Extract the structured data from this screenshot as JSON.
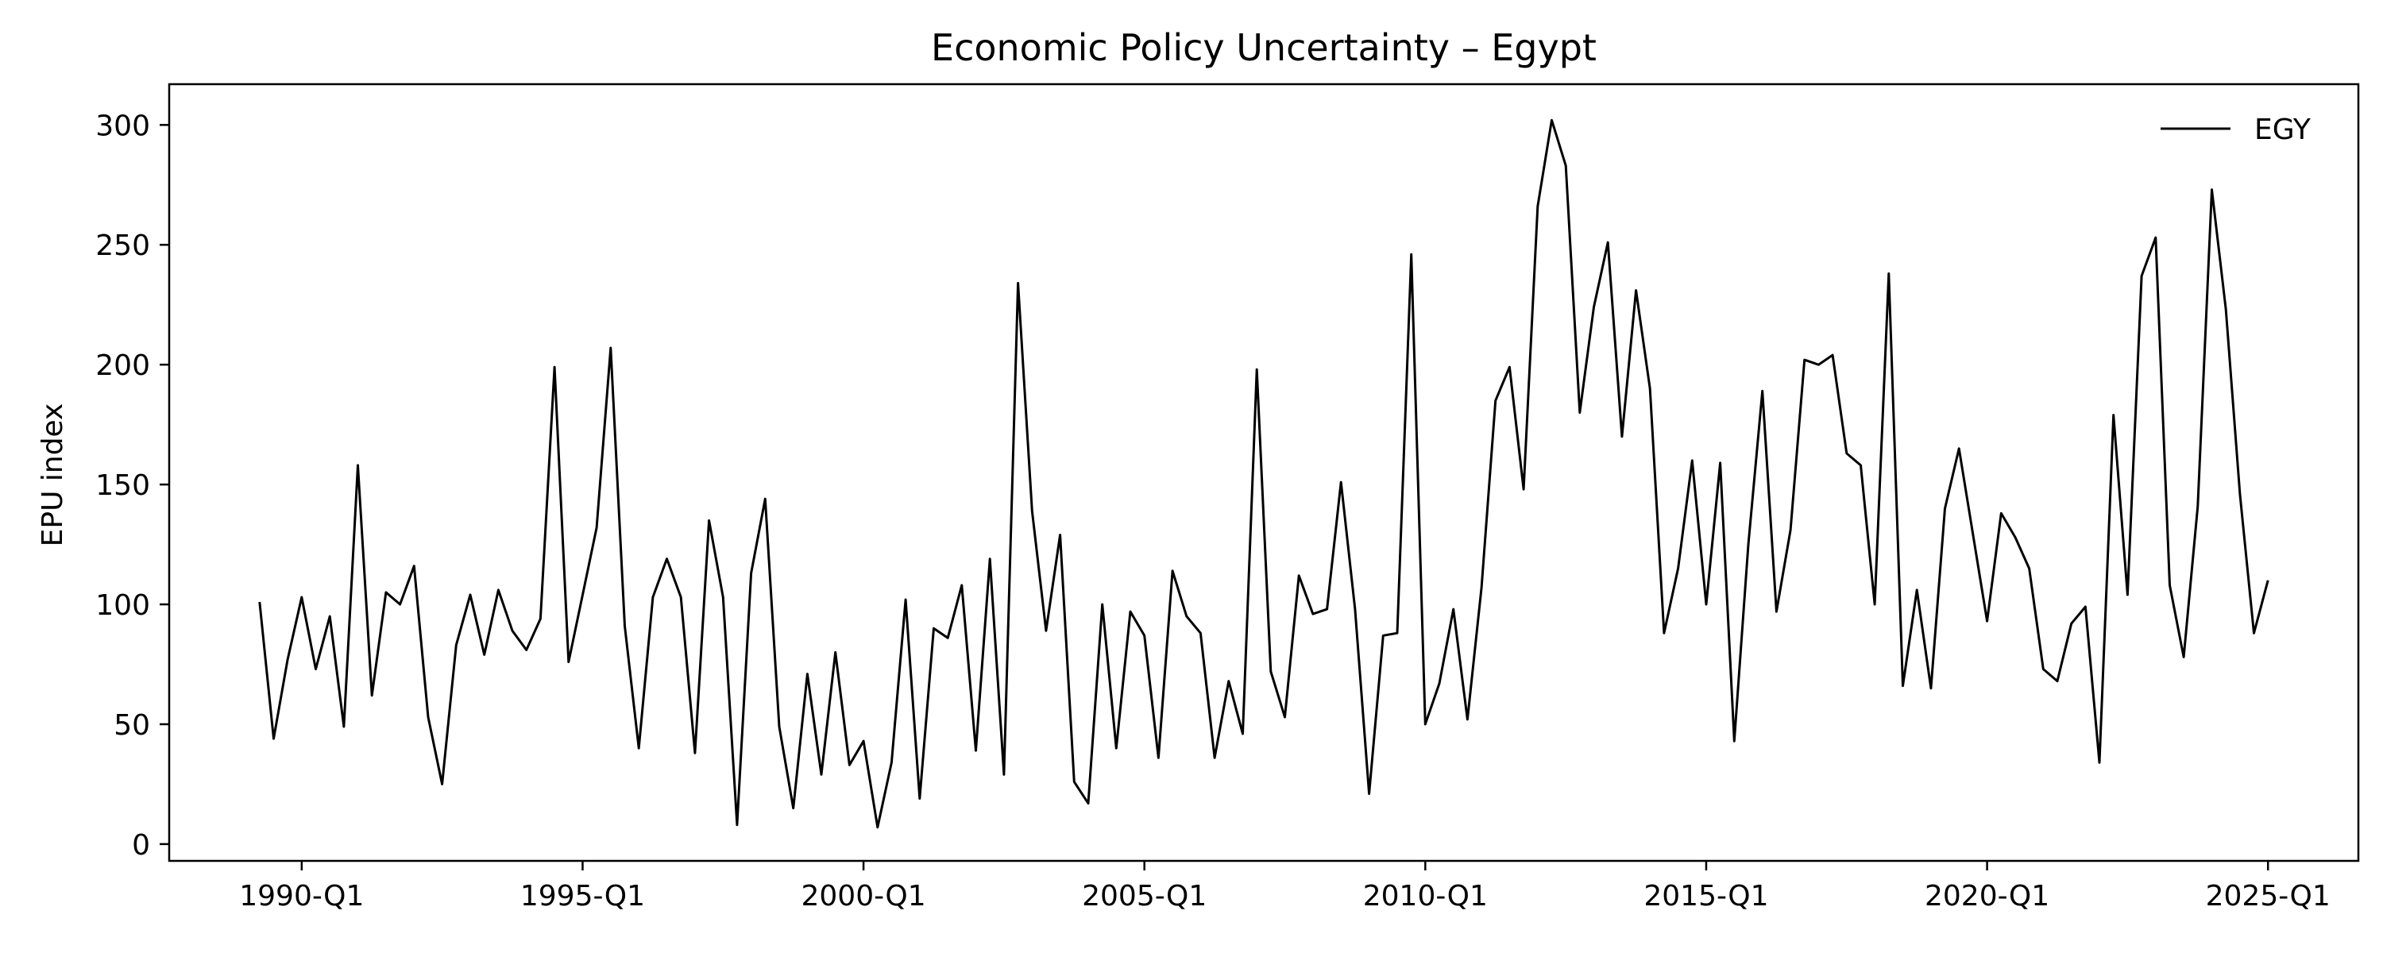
{
  "chart_data": {
    "type": "line",
    "title": "Economic Policy Uncertainty – Egypt",
    "xlabel": "",
    "ylabel": "EPU index",
    "x_start": "1989-Q2",
    "x_tick_labels": [
      "1990-Q1",
      "1995-Q1",
      "2000-Q1",
      "2005-Q1",
      "2010-Q1",
      "2015-Q1",
      "2020-Q1",
      "2025-Q1"
    ],
    "y_ticks": [
      0,
      50,
      100,
      150,
      200,
      250,
      300
    ],
    "ylim": [
      -7,
      317
    ],
    "grid": false,
    "legend_position": "top-right",
    "colors": {
      "line": "#000000",
      "axes": "#000000",
      "background": "#ffffff"
    },
    "series": [
      {
        "name": "EGY",
        "values": [
          101,
          44,
          77,
          103,
          73,
          95,
          49,
          158,
          62,
          105,
          100,
          116,
          53,
          25,
          83,
          104,
          79,
          106,
          89,
          81,
          94,
          199,
          76,
          104,
          132,
          207,
          91,
          40,
          103,
          119,
          103,
          38,
          135,
          103,
          8,
          113,
          144,
          49,
          15,
          71,
          29,
          80,
          33,
          43,
          7,
          34,
          102,
          19,
          90,
          86,
          108,
          39,
          119,
          29,
          234,
          139,
          89,
          129,
          26,
          17,
          100,
          40,
          97,
          87,
          36,
          114,
          95,
          88,
          36,
          68,
          46,
          198,
          72,
          53,
          112,
          96,
          98,
          151,
          98,
          21,
          87,
          88,
          246,
          50,
          67,
          98,
          52,
          107,
          185,
          199,
          148,
          266,
          302,
          283,
          180,
          224,
          251,
          170,
          231,
          190,
          88,
          115,
          160,
          100,
          159,
          43,
          125,
          189,
          97,
          131,
          202,
          200,
          204,
          163,
          158,
          100,
          238,
          66,
          106,
          65,
          140,
          165,
          129,
          93,
          138,
          128,
          115,
          73,
          68,
          92,
          99,
          34,
          179,
          104,
          237,
          253,
          108,
          78,
          141,
          273,
          223,
          146,
          88,
          110
        ]
      }
    ]
  }
}
